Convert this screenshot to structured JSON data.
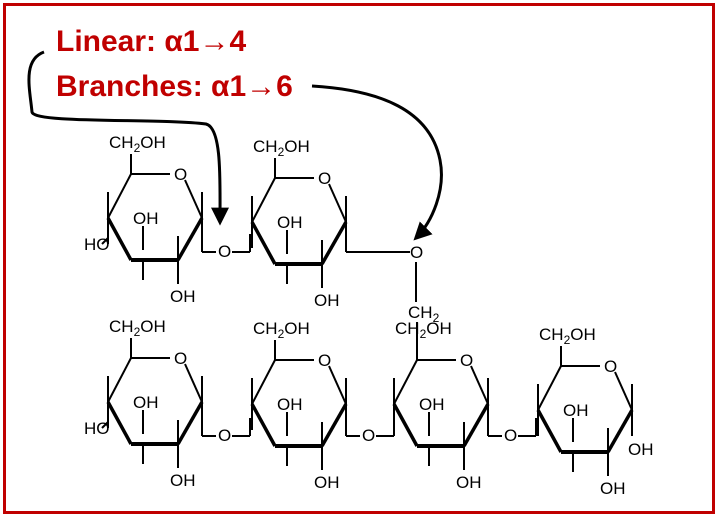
{
  "legend": {
    "linear": "Linear: α1→4",
    "branches": "Branches: α1→6"
  },
  "labels": {
    "ch2oh": "CH2OH",
    "oh": "OH",
    "ho": "HO",
    "ring_o": "O",
    "linkage_o": "O",
    "ch2": "CH2"
  },
  "colors": {
    "frame": "#c00000",
    "legend_text": "#c00000",
    "structure": "#000000"
  }
}
